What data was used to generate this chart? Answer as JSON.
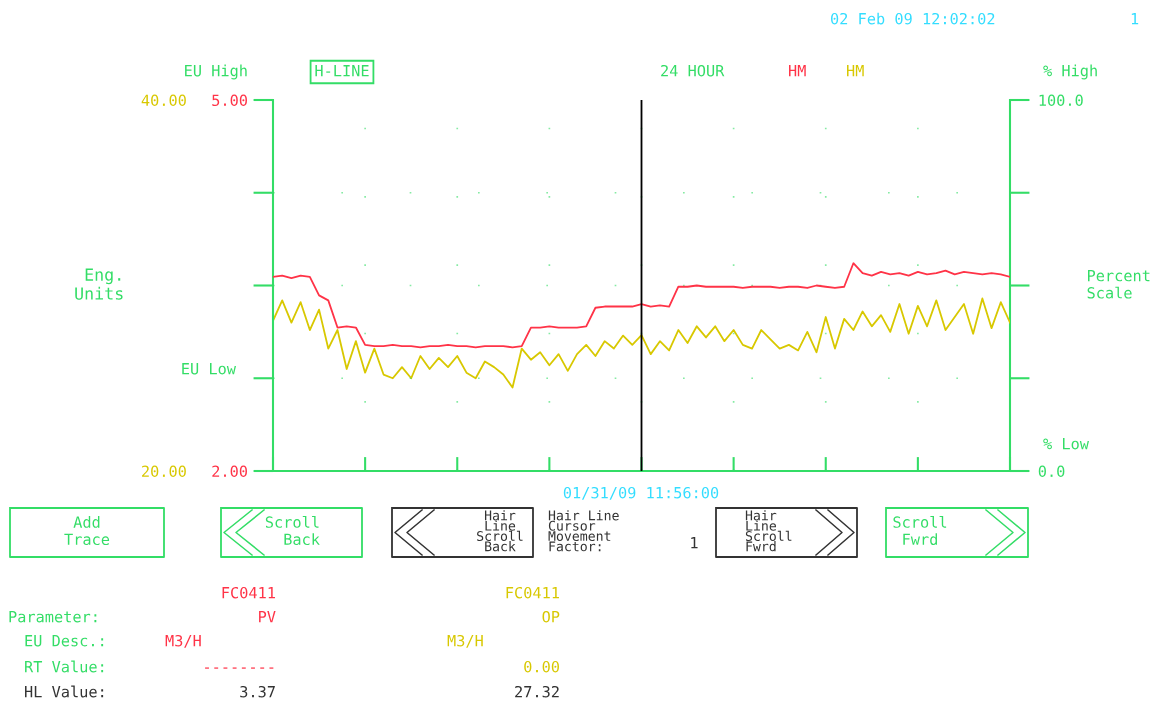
{
  "chart_data": {
    "type": "line",
    "categories": [
      null,
      null,
      null,
      null,
      null,
      null,
      null,
      null,
      null,
      null,
      null,
      null,
      null,
      null,
      null,
      null,
      null,
      null,
      null,
      null,
      null,
      null,
      null,
      null,
      null,
      null,
      null,
      null,
      null,
      null,
      null,
      null,
      null,
      null,
      null,
      null,
      null,
      null,
      null,
      null,
      null,
      null,
      null,
      null,
      null,
      null,
      null,
      null,
      null,
      null,
      null,
      null,
      null,
      null,
      null,
      null,
      null,
      null,
      null,
      null,
      null,
      null,
      null,
      null,
      null,
      null,
      null,
      null,
      null,
      null,
      null,
      null,
      null,
      null,
      null,
      null,
      null,
      null,
      null,
      null,
      null
    ],
    "series": [
      {
        "name": "HM",
        "color": "#ff3347",
        "values": [
          3.57,
          3.58,
          3.56,
          3.58,
          3.57,
          3.42,
          3.38,
          3.16,
          3.17,
          3.16,
          3.02,
          3.01,
          3.01,
          3.02,
          3.01,
          3.01,
          3.0,
          3.01,
          3.01,
          3.02,
          3.01,
          3.01,
          3.0,
          3.01,
          3.01,
          3.01,
          3.0,
          3.01,
          3.16,
          3.16,
          3.17,
          3.16,
          3.16,
          3.16,
          3.17,
          3.32,
          3.33,
          3.33,
          3.33,
          3.33,
          3.35,
          3.33,
          3.34,
          3.33,
          3.49,
          3.49,
          3.5,
          3.49,
          3.49,
          3.49,
          3.49,
          3.48,
          3.49,
          3.49,
          3.49,
          3.48,
          3.49,
          3.49,
          3.48,
          3.5,
          3.49,
          3.48,
          3.49,
          3.68,
          3.6,
          3.58,
          3.61,
          3.59,
          3.6,
          3.58,
          3.61,
          3.59,
          3.6,
          3.62,
          3.59,
          3.61,
          3.6,
          3.59,
          3.6,
          3.59,
          3.57
        ]
      },
      {
        "name": "HM",
        "color": "#d8c800",
        "axis": "y2",
        "values": [
          28.1,
          29.2,
          28.0,
          29.1,
          27.6,
          28.7,
          26.6,
          27.6,
          25.5,
          27.0,
          25.3,
          26.6,
          25.2,
          25.0,
          25.6,
          25.0,
          26.2,
          25.5,
          26.1,
          25.6,
          26.2,
          25.3,
          25.0,
          25.9,
          25.6,
          25.2,
          24.5,
          26.6,
          26.0,
          26.4,
          25.7,
          26.3,
          25.4,
          26.3,
          26.8,
          26.2,
          27.0,
          26.6,
          27.3,
          26.8,
          27.32,
          26.3,
          27.0,
          26.5,
          27.6,
          26.9,
          27.8,
          27.2,
          27.8,
          27.0,
          27.6,
          26.8,
          26.6,
          27.6,
          27.1,
          26.6,
          26.8,
          26.5,
          27.5,
          26.4,
          28.3,
          26.6,
          28.2,
          27.6,
          28.6,
          27.8,
          28.4,
          27.5,
          29.0,
          27.4,
          28.9,
          27.8,
          29.2,
          27.6,
          28.3,
          29.0,
          27.4,
          29.3,
          27.7,
          29.1,
          28.0
        ]
      }
    ],
    "y2label": "Eng.\nUnits",
    "y3label": "Percent\nScale",
    "ylim": [
      2,
      5
    ],
    "yticks": [
      {
        "value": 2,
        "label": "2.00"
      },
      {
        "value": 2.75,
        "label": null
      },
      {
        "value": 3.5,
        "label": null
      },
      {
        "value": 4.25,
        "label": null
      },
      {
        "value": 5,
        "label": "5.00"
      }
    ],
    "y2lim": [
      20,
      40
    ],
    "y2ticks": [
      {
        "value": 20,
        "label": "20.00"
      },
      {
        "value": 40,
        "label": "40.00"
      }
    ],
    "y3lim": [
      0,
      100
    ],
    "y3ticks": [
      {
        "value": 0,
        "label": "0.0"
      },
      {
        "value": 25,
        "label": null
      },
      {
        "value": 50,
        "label": null
      },
      {
        "value": 75,
        "label": null
      },
      {
        "value": 100,
        "label": "100.0"
      }
    ],
    "grid": true,
    "annotations": [
      "02 Feb 09 12:02:02",
      "1",
      "H-LINE",
      "24 HOUR",
      "EU High",
      "EU Low",
      "% High",
      "% Low",
      "Add\nTrace",
      "Scroll\nBack",
      "Hair\nLine\nScroll\nBack",
      "Hair Line\nCursor\nMovement\nFactor:",
      "1",
      "Hair\nLine\nScroll\nFwrd",
      "Scroll\nFwrd",
      "Parameter:",
      "EU Desc.:",
      "RT Value:",
      "HL Value:",
      "FC0411",
      "PV",
      "M3/H",
      "--------",
      "3.37",
      "FC0411",
      "OP",
      "M3/H",
      "0.00",
      "27.32",
      "01/31/09 11:56:00"
    ]
  }
}
